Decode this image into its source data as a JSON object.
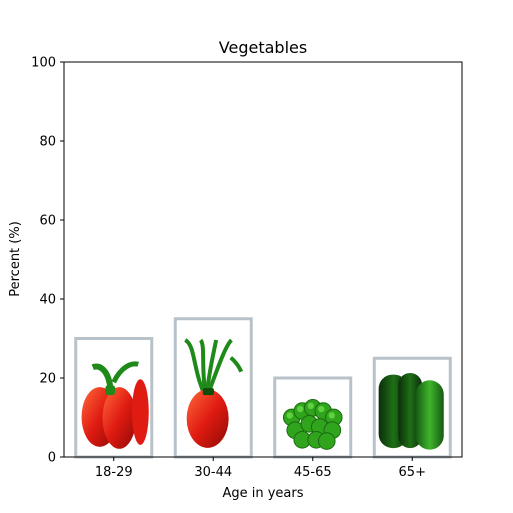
{
  "chart_data": {
    "type": "bar",
    "title": "Vegetables",
    "xlabel": "Age in years",
    "ylabel": "Percent (%)",
    "categories": [
      "18-29",
      "30-44",
      "45-65",
      "65+"
    ],
    "values": [
      30,
      35,
      20,
      25
    ],
    "ylim": [
      0,
      100
    ],
    "yticks": [
      0,
      20,
      40,
      60,
      80,
      100
    ],
    "grid": false,
    "legend": "none",
    "bar_images": [
      "red-bell-pepper",
      "red-pepper",
      "broccoli",
      "cucumber"
    ]
  },
  "colors": {
    "pepper_red": "#e01b12",
    "pepper_stem": "#1f8a1a",
    "broccoli_green": "#2fa41c",
    "cucumber_dark": "#0d3d0d",
    "cucumber_light": "#2f9b22",
    "frame_gray": "#b9c2c8"
  }
}
